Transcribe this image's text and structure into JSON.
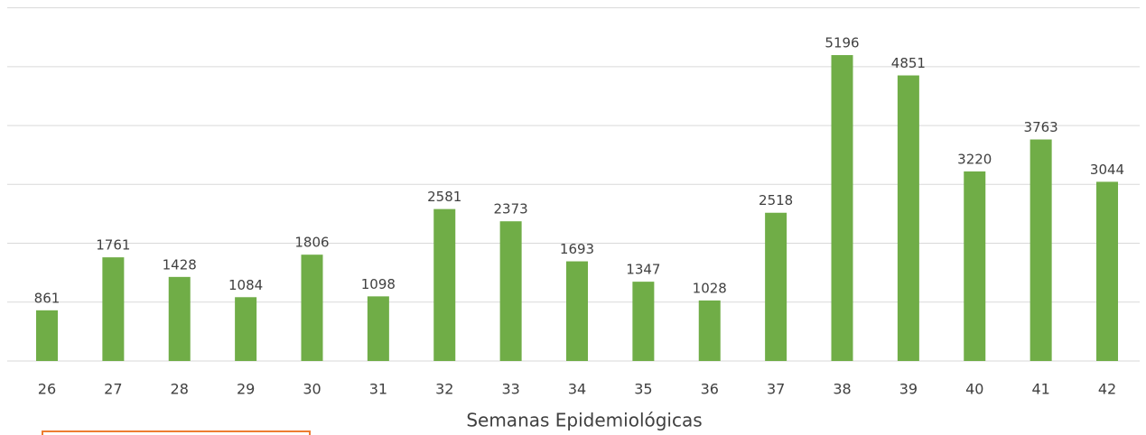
{
  "chart_data": {
    "type": "bar",
    "x_label": "Semanas Epidemiológicas",
    "categories": [
      "26",
      "27",
      "28",
      "29",
      "30",
      "31",
      "32",
      "33",
      "34",
      "35",
      "36",
      "37",
      "38",
      "39",
      "40",
      "41",
      "42"
    ],
    "values": [
      861,
      1761,
      1428,
      1084,
      1806,
      1098,
      2581,
      2373,
      1693,
      1347,
      1028,
      2518,
      5196,
      4851,
      3220,
      3763,
      3044
    ],
    "color": "#70ad47",
    "ylim": [
      0,
      6000
    ],
    "yticks": [
      0,
      1000,
      2000,
      3000,
      4000,
      5000,
      6000
    ],
    "grid": true
  }
}
